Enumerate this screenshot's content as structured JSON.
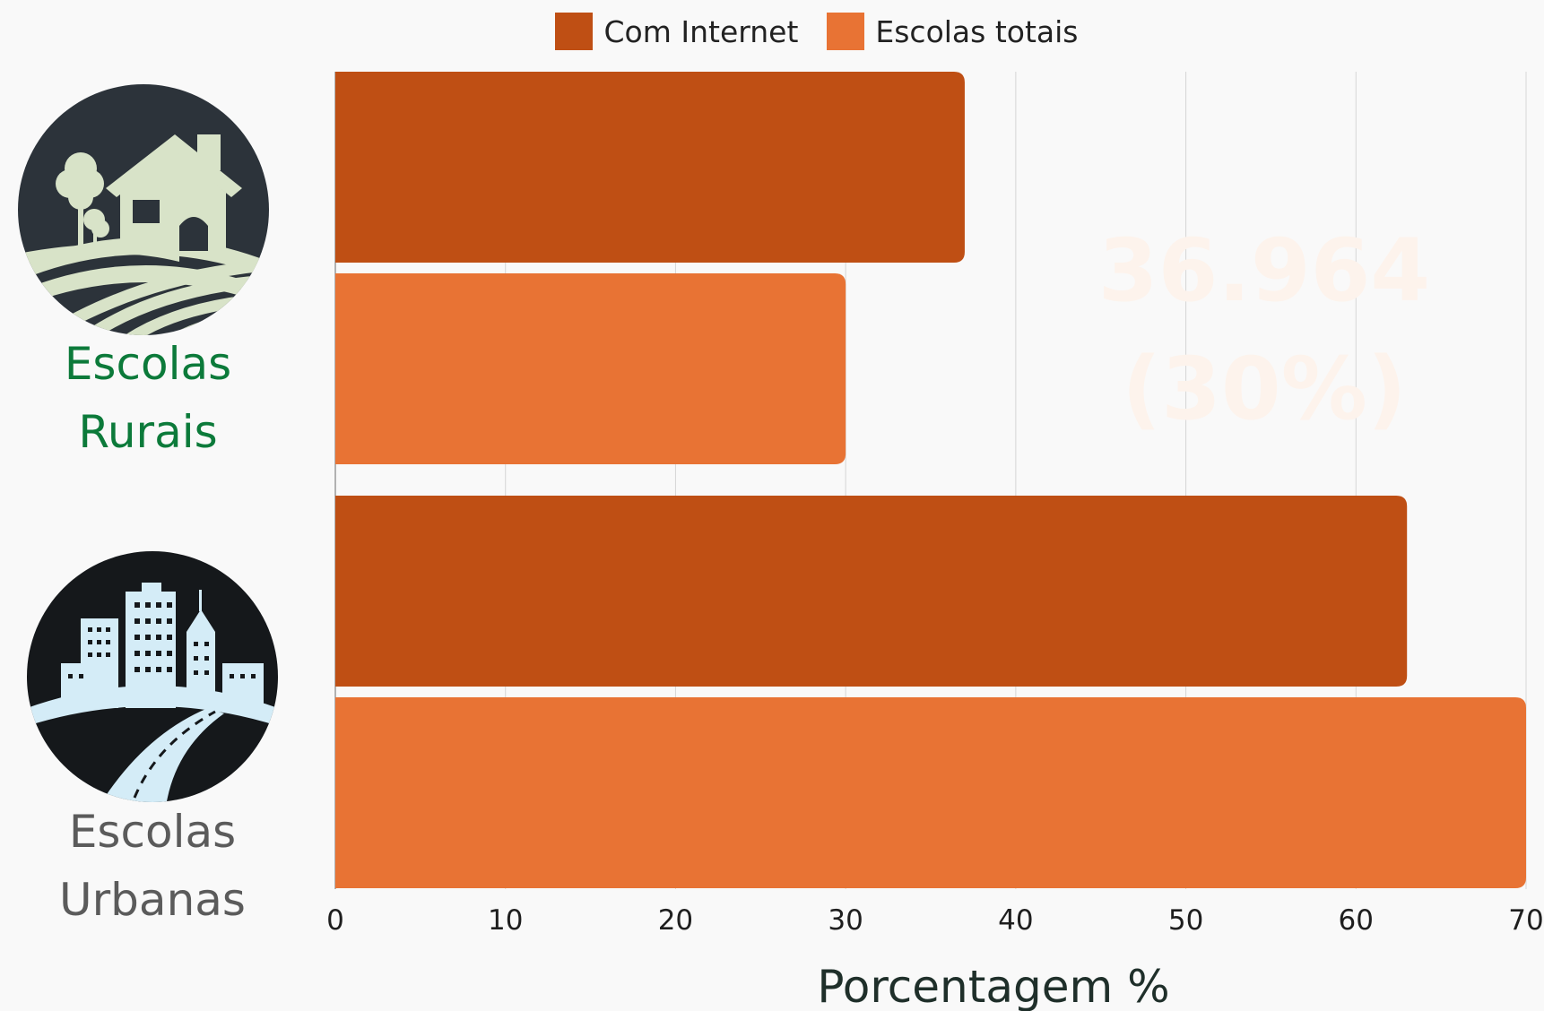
{
  "chart_data": {
    "type": "bar",
    "orientation": "horizontal",
    "categories": [
      "Escolas Rurais",
      "Escolas Urbanas"
    ],
    "category_lines": [
      [
        "Escolas",
        "Rurais"
      ],
      [
        "Escolas",
        "Urbanas"
      ]
    ],
    "series": [
      {
        "name": "Com Internet",
        "values": [
          37,
          63
        ],
        "color": "#bf4f14"
      },
      {
        "name": "Escolas totais",
        "values": [
          30,
          70
        ],
        "color": "#e87334"
      }
    ],
    "xlabel": "Porcentagem %",
    "xlim": [
      0,
      70
    ],
    "xticks": [
      0,
      10,
      20,
      30,
      40,
      50,
      60,
      70
    ],
    "grid": true,
    "legend_position": "top-center",
    "annotation_lines": [
      "36.964",
      "(30%)"
    ],
    "category_label_colors": [
      "#0c7a3a",
      "#5b5b5b"
    ],
    "icons": [
      "rural-house-farm-icon",
      "city-skyline-road-icon"
    ]
  }
}
